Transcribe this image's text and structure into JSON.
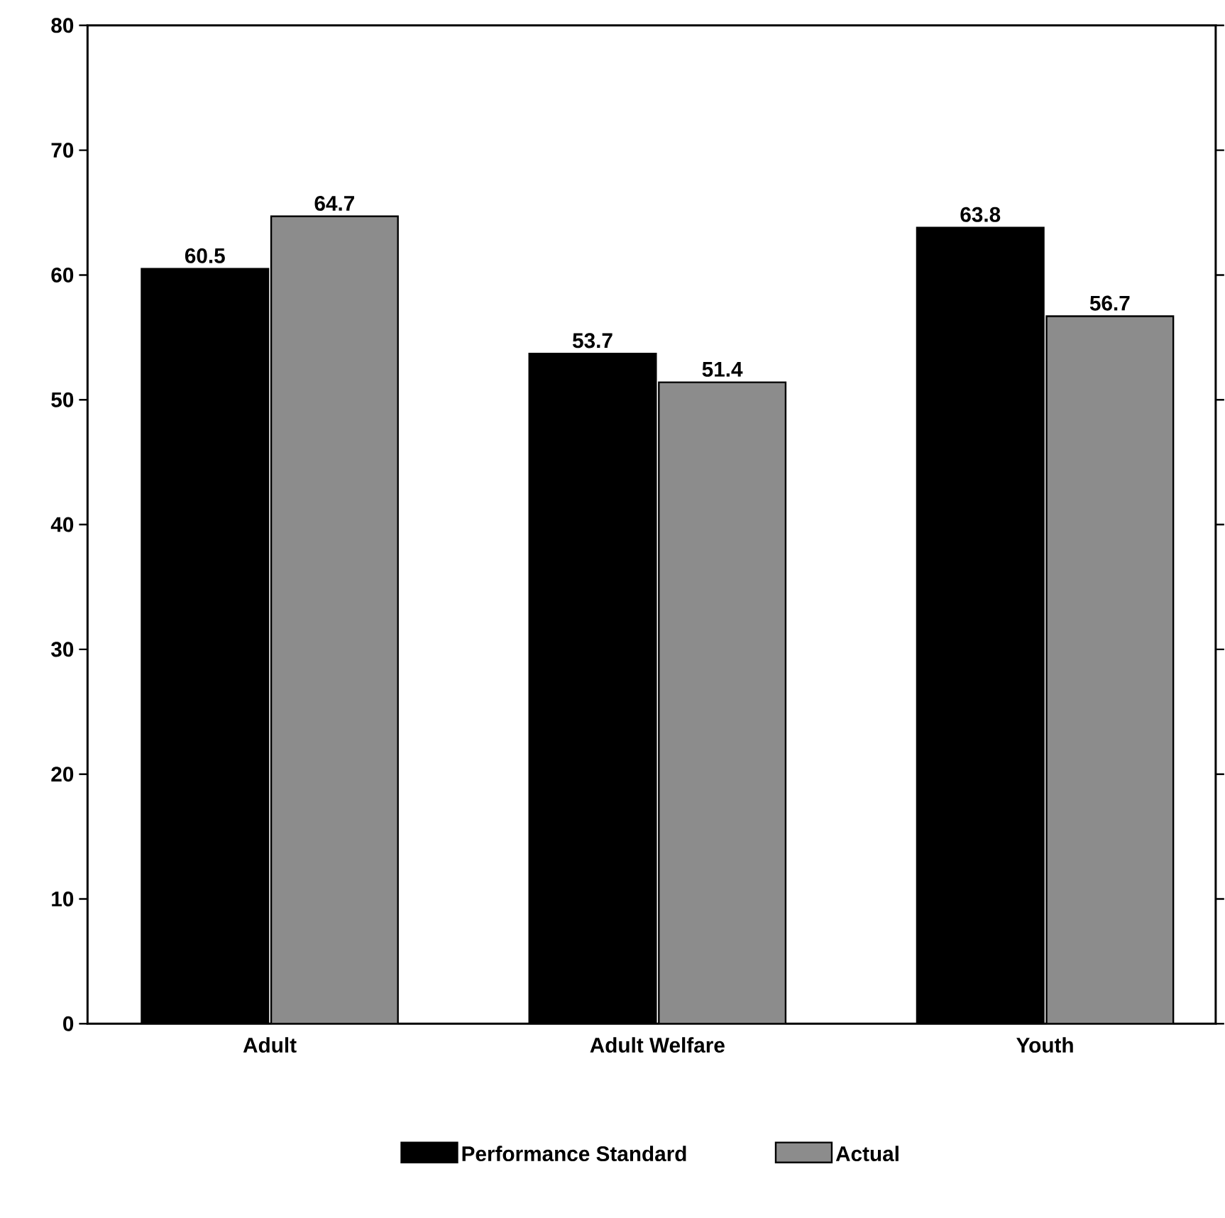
{
  "chart_data": {
    "type": "bar",
    "categories": [
      "Adult",
      "Adult Welfare",
      "Youth"
    ],
    "series": [
      {
        "name": "Performance Standard",
        "color": "#000000",
        "values": [
          60.5,
          53.7,
          63.8
        ]
      },
      {
        "name": "Actual",
        "color": "#8c8c8c",
        "values": [
          64.7,
          51.4,
          56.7
        ]
      }
    ],
    "ylim": [
      0,
      80
    ],
    "yticks": [
      0,
      10,
      20,
      30,
      40,
      50,
      60,
      70,
      80
    ],
    "data_labels": true,
    "legend": "bottom",
    "grid": false
  }
}
